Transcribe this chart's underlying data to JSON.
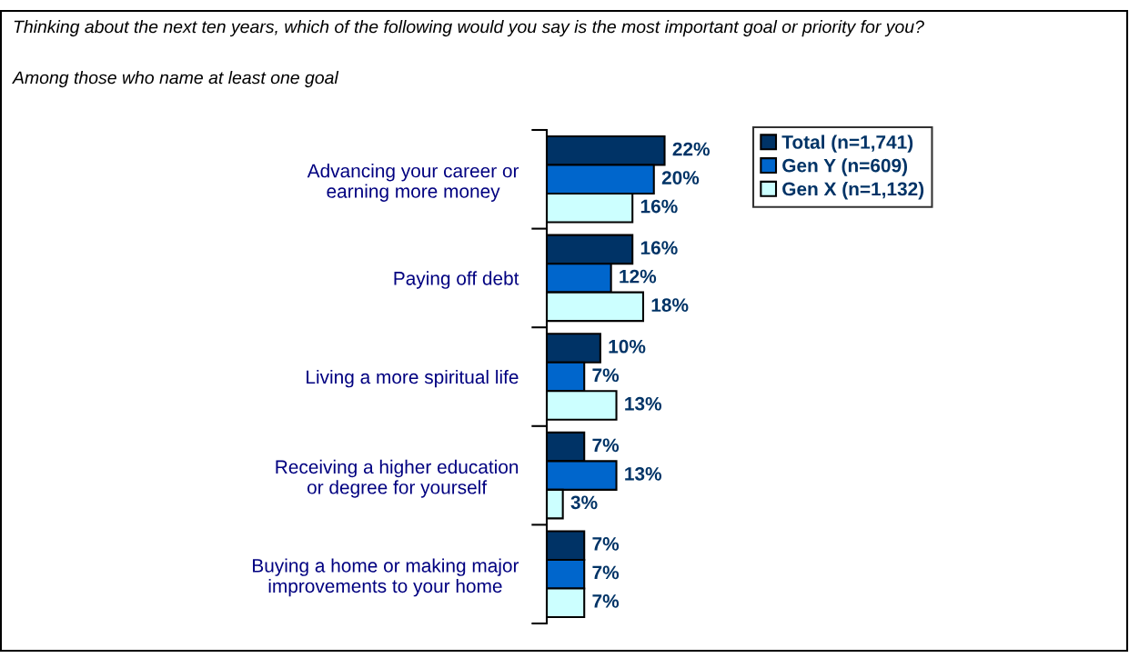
{
  "chart_data": {
    "type": "bar",
    "orientation": "horizontal",
    "subtitle": "Thinking about the next ten years, which of the following would you say is the most important goal or priority for you?",
    "annotations": [
      "Among those who name at least one goal"
    ],
    "categories": [
      "Advancing your career or\nearning more money",
      "Paying off debt",
      "Living a more spiritual life",
      "Receiving a higher education\nor degree for yourself",
      "Buying a home or making major\nimprovements to your home"
    ],
    "series": [
      {
        "name": "Total (n=1,741)",
        "color": "#003366",
        "values": [
          22,
          16,
          10,
          7,
          7
        ],
        "value_labels": [
          "22%",
          "16%",
          "10%",
          "7%",
          "7%"
        ]
      },
      {
        "name": "Gen Y (n=609)",
        "color": "#0066cc",
        "values": [
          20,
          12,
          7,
          13,
          7
        ],
        "value_labels": [
          "20%",
          "12%",
          "7%",
          "13%",
          "7%"
        ]
      },
      {
        "name": "Gen X (n=1,132)",
        "color": "#ccffff",
        "values": [
          16,
          18,
          13,
          3,
          7
        ],
        "value_labels": [
          "16%",
          "18%",
          "13%",
          "3%",
          "7%"
        ]
      }
    ],
    "legend": "top right",
    "grid": false
  }
}
